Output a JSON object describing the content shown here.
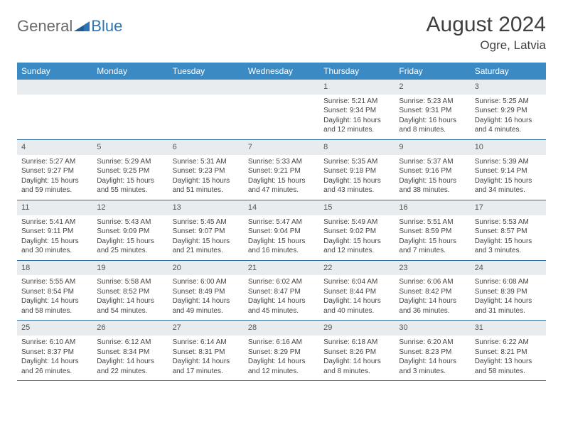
{
  "brand": {
    "word1": "General",
    "word2": "Blue"
  },
  "title": "August 2024",
  "location": "Ogre, Latvia",
  "colors": {
    "header_bg": "#3b8ac4",
    "header_text": "#ffffff",
    "row_border": "#2f6ca0",
    "daynum_bg": "#e9ecef",
    "brand_gray": "#6a6a6a",
    "brand_blue": "#2f75b5",
    "text": "#404040"
  },
  "day_names": [
    "Sunday",
    "Monday",
    "Tuesday",
    "Wednesday",
    "Thursday",
    "Friday",
    "Saturday"
  ],
  "weeks": [
    [
      null,
      null,
      null,
      null,
      {
        "n": "1",
        "sr": "5:21 AM",
        "ss": "9:34 PM",
        "dh": "16",
        "dm": "12"
      },
      {
        "n": "2",
        "sr": "5:23 AM",
        "ss": "9:31 PM",
        "dh": "16",
        "dm": "8"
      },
      {
        "n": "3",
        "sr": "5:25 AM",
        "ss": "9:29 PM",
        "dh": "16",
        "dm": "4"
      }
    ],
    [
      {
        "n": "4",
        "sr": "5:27 AM",
        "ss": "9:27 PM",
        "dh": "15",
        "dm": "59"
      },
      {
        "n": "5",
        "sr": "5:29 AM",
        "ss": "9:25 PM",
        "dh": "15",
        "dm": "55"
      },
      {
        "n": "6",
        "sr": "5:31 AM",
        "ss": "9:23 PM",
        "dh": "15",
        "dm": "51"
      },
      {
        "n": "7",
        "sr": "5:33 AM",
        "ss": "9:21 PM",
        "dh": "15",
        "dm": "47"
      },
      {
        "n": "8",
        "sr": "5:35 AM",
        "ss": "9:18 PM",
        "dh": "15",
        "dm": "43"
      },
      {
        "n": "9",
        "sr": "5:37 AM",
        "ss": "9:16 PM",
        "dh": "15",
        "dm": "38"
      },
      {
        "n": "10",
        "sr": "5:39 AM",
        "ss": "9:14 PM",
        "dh": "15",
        "dm": "34"
      }
    ],
    [
      {
        "n": "11",
        "sr": "5:41 AM",
        "ss": "9:11 PM",
        "dh": "15",
        "dm": "30"
      },
      {
        "n": "12",
        "sr": "5:43 AM",
        "ss": "9:09 PM",
        "dh": "15",
        "dm": "25"
      },
      {
        "n": "13",
        "sr": "5:45 AM",
        "ss": "9:07 PM",
        "dh": "15",
        "dm": "21"
      },
      {
        "n": "14",
        "sr": "5:47 AM",
        "ss": "9:04 PM",
        "dh": "15",
        "dm": "16"
      },
      {
        "n": "15",
        "sr": "5:49 AM",
        "ss": "9:02 PM",
        "dh": "15",
        "dm": "12"
      },
      {
        "n": "16",
        "sr": "5:51 AM",
        "ss": "8:59 PM",
        "dh": "15",
        "dm": "7"
      },
      {
        "n": "17",
        "sr": "5:53 AM",
        "ss": "8:57 PM",
        "dh": "15",
        "dm": "3"
      }
    ],
    [
      {
        "n": "18",
        "sr": "5:55 AM",
        "ss": "8:54 PM",
        "dh": "14",
        "dm": "58"
      },
      {
        "n": "19",
        "sr": "5:58 AM",
        "ss": "8:52 PM",
        "dh": "14",
        "dm": "54"
      },
      {
        "n": "20",
        "sr": "6:00 AM",
        "ss": "8:49 PM",
        "dh": "14",
        "dm": "49"
      },
      {
        "n": "21",
        "sr": "6:02 AM",
        "ss": "8:47 PM",
        "dh": "14",
        "dm": "45"
      },
      {
        "n": "22",
        "sr": "6:04 AM",
        "ss": "8:44 PM",
        "dh": "14",
        "dm": "40"
      },
      {
        "n": "23",
        "sr": "6:06 AM",
        "ss": "8:42 PM",
        "dh": "14",
        "dm": "36"
      },
      {
        "n": "24",
        "sr": "6:08 AM",
        "ss": "8:39 PM",
        "dh": "14",
        "dm": "31"
      }
    ],
    [
      {
        "n": "25",
        "sr": "6:10 AM",
        "ss": "8:37 PM",
        "dh": "14",
        "dm": "26"
      },
      {
        "n": "26",
        "sr": "6:12 AM",
        "ss": "8:34 PM",
        "dh": "14",
        "dm": "22"
      },
      {
        "n": "27",
        "sr": "6:14 AM",
        "ss": "8:31 PM",
        "dh": "14",
        "dm": "17"
      },
      {
        "n": "28",
        "sr": "6:16 AM",
        "ss": "8:29 PM",
        "dh": "14",
        "dm": "12"
      },
      {
        "n": "29",
        "sr": "6:18 AM",
        "ss": "8:26 PM",
        "dh": "14",
        "dm": "8"
      },
      {
        "n": "30",
        "sr": "6:20 AM",
        "ss": "8:23 PM",
        "dh": "14",
        "dm": "3"
      },
      {
        "n": "31",
        "sr": "6:22 AM",
        "ss": "8:21 PM",
        "dh": "13",
        "dm": "58"
      }
    ]
  ],
  "labels": {
    "sunrise": "Sunrise: ",
    "sunset": "Sunset: ",
    "daylight_pre": "Daylight: ",
    "hours_word": " hours",
    "and_word": "and ",
    "minutes_word": " minutes."
  }
}
